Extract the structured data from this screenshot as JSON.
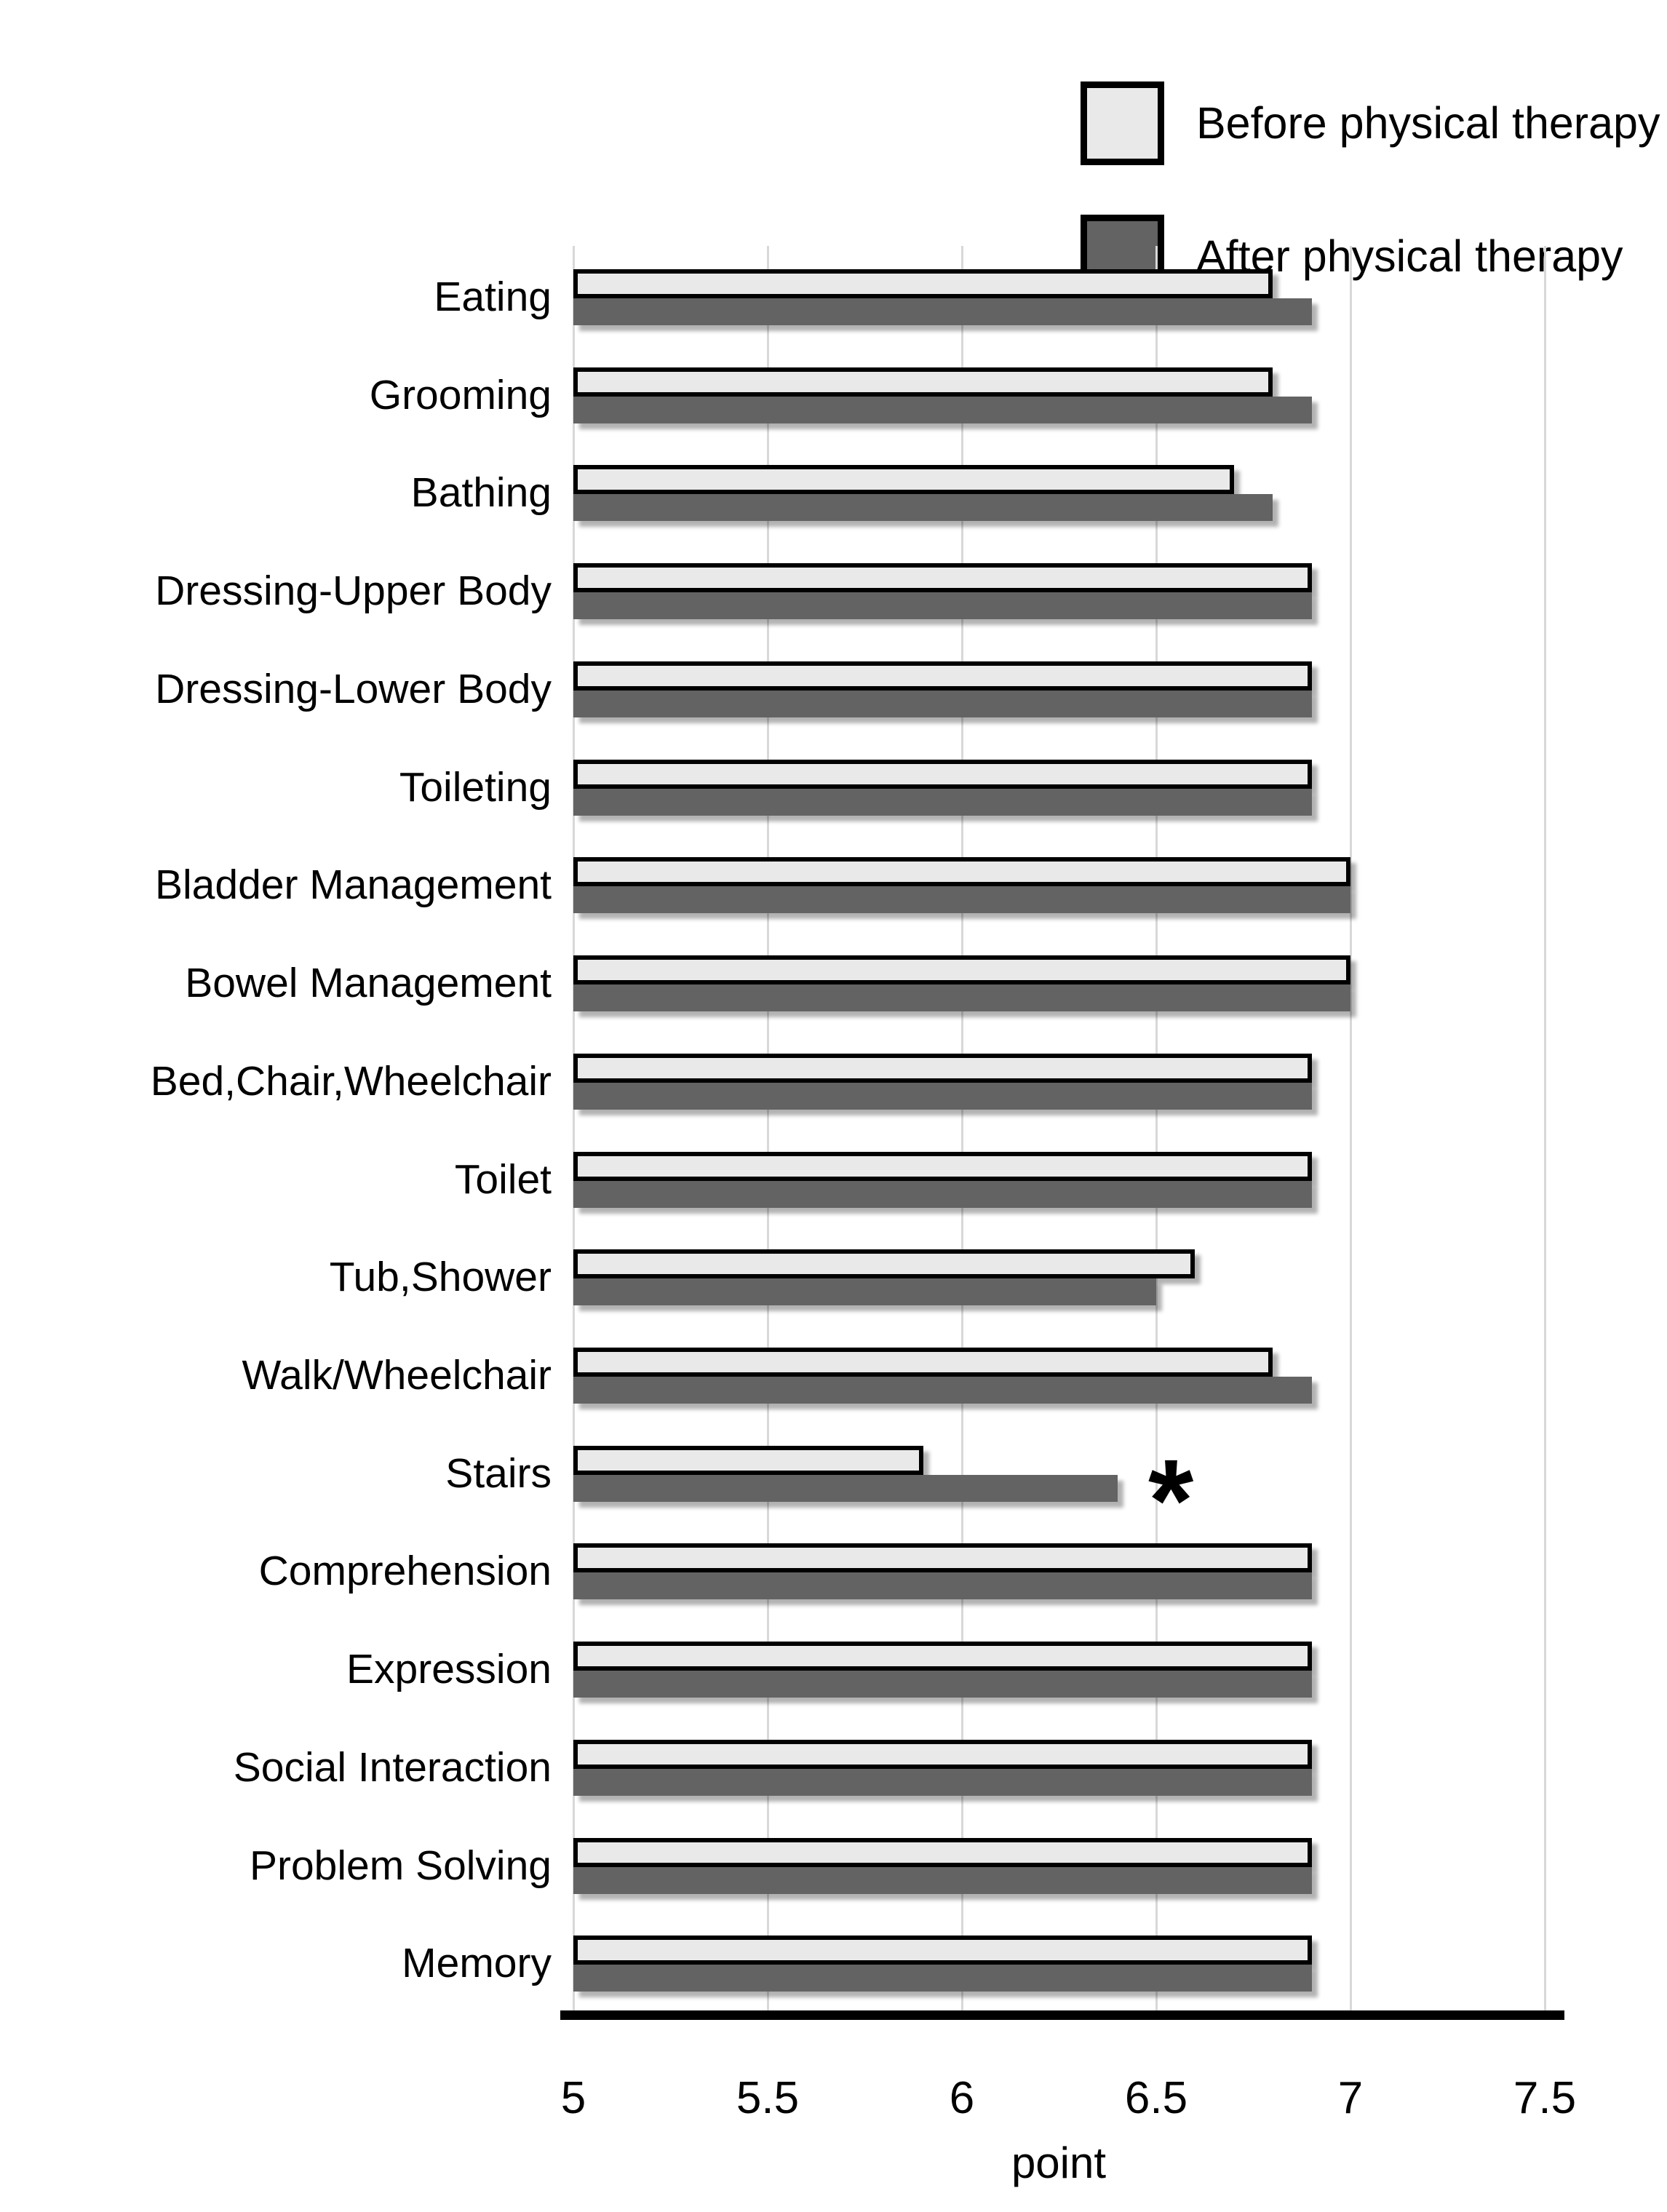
{
  "figure": {
    "background": "#ffffff",
    "axis_color": "#000000",
    "gridline_color": "#d8d8d8"
  },
  "chart_data": {
    "type": "bar",
    "orientation": "horizontal",
    "title": "",
    "xlabel": "point",
    "ylabel": "",
    "xlim": [
      5,
      7.5
    ],
    "xticks": [
      5,
      5.5,
      6,
      6.5,
      7,
      7.5
    ],
    "xtick_labels": [
      "5",
      "5.5",
      "6",
      "6.5",
      "7",
      "7.5"
    ],
    "grid": "vertical gridlines at each 0.5 step",
    "legend_position": "top-right",
    "categories": [
      "Eating",
      "Grooming",
      "Bathing",
      "Dressing-Upper Body",
      "Dressing-Lower Body",
      "Toileting",
      "Bladder Management",
      "Bowel Management",
      "Bed,Chair,Wheelchair",
      "Toilet",
      "Tub,Shower",
      "Walk/Wheelchair",
      "Stairs",
      "Comprehension",
      "Expression",
      "Social Interaction",
      "Problem Solving",
      "Memory"
    ],
    "series": [
      {
        "name": "Before physical therapy",
        "color": "#e9e9e9",
        "values": [
          6.8,
          6.8,
          6.7,
          6.9,
          6.9,
          6.9,
          7.0,
          7.0,
          6.9,
          6.9,
          6.6,
          6.8,
          5.9,
          6.9,
          6.9,
          6.9,
          6.9,
          6.9
        ]
      },
      {
        "name": "After physical therapy",
        "color": "#636363",
        "values": [
          6.9,
          6.9,
          6.8,
          6.9,
          6.9,
          6.9,
          7.0,
          7.0,
          6.9,
          6.9,
          6.5,
          6.9,
          6.4,
          6.9,
          6.9,
          6.9,
          6.9,
          6.9
        ]
      }
    ],
    "annotations": [
      {
        "text": "*",
        "category": "Stairs",
        "series": "After physical therapy"
      }
    ]
  }
}
